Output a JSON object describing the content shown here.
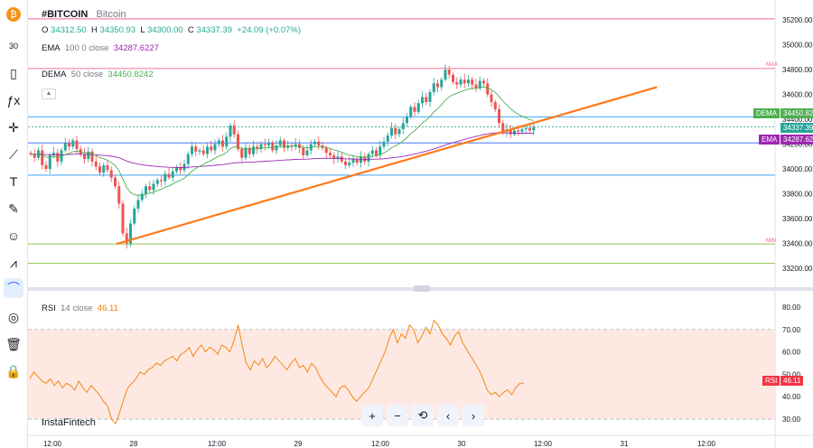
{
  "header": {
    "symbol": "#BITCOIN",
    "name": "Bitcoin",
    "o_label": "O",
    "o_value": "34312.50",
    "h_label": "H",
    "h_value": "34350.93",
    "l_label": "L",
    "l_value": "34300.00",
    "c_label": "C",
    "c_value": "34337.39",
    "change": "+24.09 (+0.07%)"
  },
  "indicators": {
    "ema_label": "EMA",
    "ema_params": "100 0 close",
    "ema_value": "34287.6227",
    "dema_label": "DEMA",
    "dema_params": "50 close",
    "dema_value": "34450.8242",
    "rsi_label": "RSI",
    "rsi_params": "14 close",
    "rsi_value": "46.11"
  },
  "brand": "InstaFintech",
  "toolbar_icons": [
    "bitcoin-icon",
    "timeframe-icon",
    "chart-type-icon",
    "indicators-icon",
    "crosshair-icon",
    "trendline-icon",
    "text-icon",
    "brush-icon",
    "emoji-icon",
    "pattern-icon",
    "magnet-icon",
    "hide-icon",
    "trash-icon",
    "lock-icon"
  ],
  "zoom_controls": [
    "+",
    "−",
    "⟲",
    "‹",
    "›"
  ],
  "axis_tags": {
    "dema": "DEMA",
    "dema_price": "34450.82",
    "price": "34337.39",
    "ema": "EMA",
    "ema_price": "34287.62",
    "rsi": "RSI",
    "rsi_price": "46.11",
    "max": "MAX",
    "min": "MIN"
  },
  "colors": {
    "up": "#26a69a",
    "down": "#ef5350",
    "ema": "#9c27b0",
    "dema": "#4caf50",
    "trendline": "#ff7a1a",
    "rsi": "#f57c00",
    "blue_line": "#2962ff"
  },
  "chart_data": [
    {
      "type": "candlestick",
      "title": "#BITCOIN",
      "y_ticks": [
        33200,
        33400,
        33600,
        33800,
        34000,
        34200,
        34400,
        34600,
        34800,
        35000,
        35200
      ],
      "x_ticks": [
        "12:00",
        "28",
        "12:00",
        "29",
        "12:00",
        "30",
        "12:00",
        "31",
        "12:00"
      ],
      "ylim": [
        33090,
        35260
      ],
      "hlines": [
        35210,
        34810,
        34420,
        34340,
        34210,
        33950,
        33395,
        33240
      ],
      "trendline": [
        [
          0,
          33395
        ],
        [
          137,
          34660
        ]
      ],
      "close_series": [
        34120,
        34090,
        34150,
        34030,
        34000,
        34110,
        34130,
        34060,
        34150,
        34210,
        34180,
        34230,
        34160,
        34120,
        34080,
        34140,
        34060,
        34020,
        33970,
        34030,
        33990,
        33930,
        33860,
        33720,
        33480,
        33400,
        33560,
        33680,
        33750,
        33800,
        33860,
        33830,
        33880,
        33910,
        33900,
        33960,
        33930,
        33980,
        34010,
        33990,
        34040,
        34120,
        34180,
        34140,
        34150,
        34120,
        34180,
        34150,
        34200,
        34230,
        34180,
        34260,
        34350,
        34280,
        34160,
        34090,
        34170,
        34120,
        34180,
        34160,
        34200,
        34190,
        34210,
        34150,
        34190,
        34230,
        34170,
        34190,
        34180,
        34200,
        34170,
        34110,
        34150,
        34200,
        34220,
        34190,
        34170,
        34130,
        34110,
        34080,
        34100,
        34060,
        34030,
        34050,
        34080,
        34050,
        34100,
        34060,
        34120,
        34150,
        34110,
        34180,
        34220,
        34270,
        34330,
        34280,
        34320,
        34370,
        34420,
        34500,
        34460,
        34530,
        34580,
        34540,
        34620,
        34690,
        34660,
        34720,
        34800,
        34760,
        34700,
        34680,
        34720,
        34690,
        34720,
        34680,
        34650,
        34710,
        34690,
        34600,
        34540,
        34480,
        34370,
        34300,
        34320,
        34280,
        34310,
        34300,
        34320,
        34330,
        34310,
        34337
      ],
      "series": [
        {
          "name": "EMA 100",
          "values_start": 34070,
          "values_end": 34287.62
        },
        {
          "name": "DEMA 50",
          "values_start": 34050,
          "values_end": 34450.82
        }
      ]
    },
    {
      "type": "line",
      "title": "RSI 14 close",
      "y_ticks": [
        30,
        40,
        50,
        60,
        70,
        80
      ],
      "ylim": [
        26,
        84
      ],
      "hlines": [
        70,
        30
      ],
      "values": [
        48,
        51,
        49,
        47,
        46,
        48,
        45,
        47,
        44,
        46,
        45,
        43,
        47,
        44,
        42,
        45,
        43,
        41,
        38,
        36,
        30,
        28,
        33,
        39,
        44,
        46,
        48,
        51,
        50,
        52,
        53,
        55,
        54,
        56,
        57,
        58,
        56,
        59,
        60,
        62,
        58,
        61,
        63,
        60,
        62,
        61,
        59,
        63,
        62,
        60,
        65,
        72,
        63,
        55,
        52,
        56,
        54,
        57,
        53,
        55,
        58,
        56,
        54,
        52,
        55,
        57,
        53,
        54,
        51,
        55,
        53,
        49,
        46,
        44,
        42,
        40,
        44,
        45,
        43,
        40,
        38,
        40,
        42,
        44,
        48,
        52,
        56,
        60,
        66,
        70,
        64,
        68,
        66,
        72,
        70,
        64,
        67,
        71,
        68,
        74,
        72,
        68,
        66,
        63,
        67,
        69,
        64,
        61,
        58,
        55,
        52,
        48,
        43,
        41,
        42,
        40,
        42,
        43,
        41,
        44,
        46,
        46.11
      ]
    }
  ]
}
